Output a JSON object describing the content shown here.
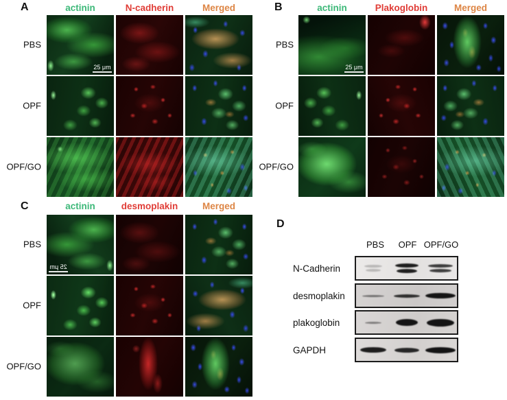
{
  "panels": {
    "A": {
      "label": "A",
      "columns": [
        "actinin",
        "N-cadherin",
        "Merged"
      ],
      "rows": [
        "PBS",
        "OPF",
        "OPF/GO"
      ],
      "scale_bar": "25 μm"
    },
    "B": {
      "label": "B",
      "columns": [
        "actinin",
        "Plakoglobin",
        "Merged"
      ],
      "rows": [
        "PBS",
        "OPF",
        "OPF/GO"
      ],
      "scale_bar": "25 μm"
    },
    "C": {
      "label": "C",
      "columns": [
        "actinin",
        "desmoplakin",
        "Merged"
      ],
      "rows": [
        "PBS",
        "OPF",
        "OPF/GO"
      ],
      "scale_bar": "25 μm"
    },
    "D": {
      "label": "D",
      "lanes": [
        "PBS",
        "OPF",
        "OPF/GO"
      ],
      "blots": [
        {
          "label": "N-Cadherin",
          "bands": [
            {
              "count": 2,
              "w": 26,
              "h": 4,
              "o": 0.22
            },
            {
              "count": 2,
              "w": 34,
              "h": 6,
              "o": 0.95
            },
            {
              "count": 2,
              "w": 36,
              "h": 5,
              "o": 0.8
            }
          ]
        },
        {
          "label": "desmoplakin",
          "bands": [
            {
              "count": 1,
              "w": 32,
              "h": 3,
              "o": 0.5
            },
            {
              "count": 1,
              "w": 38,
              "h": 5,
              "o": 0.85
            },
            {
              "count": 1,
              "w": 44,
              "h": 8,
              "o": 1
            }
          ]
        },
        {
          "label": "plakoglobin",
          "bands": [
            {
              "count": 1,
              "w": 24,
              "h": 3,
              "o": 0.45
            },
            {
              "count": 1,
              "w": 32,
              "h": 10,
              "o": 1
            },
            {
              "count": 1,
              "w": 40,
              "h": 11,
              "o": 1
            }
          ]
        },
        {
          "label": "GAPDH",
          "bands": [
            {
              "count": 1,
              "w": 38,
              "h": 8,
              "o": 0.95
            },
            {
              "count": 1,
              "w": 36,
              "h": 7,
              "o": 0.9
            },
            {
              "count": 1,
              "w": 44,
              "h": 9,
              "o": 1
            }
          ]
        }
      ]
    }
  },
  "colors": {
    "green_channel_label": "#3cb878",
    "red_channel_label": "#e03c36",
    "merged_label": "#dd8544",
    "panel_letter": "#111111"
  }
}
